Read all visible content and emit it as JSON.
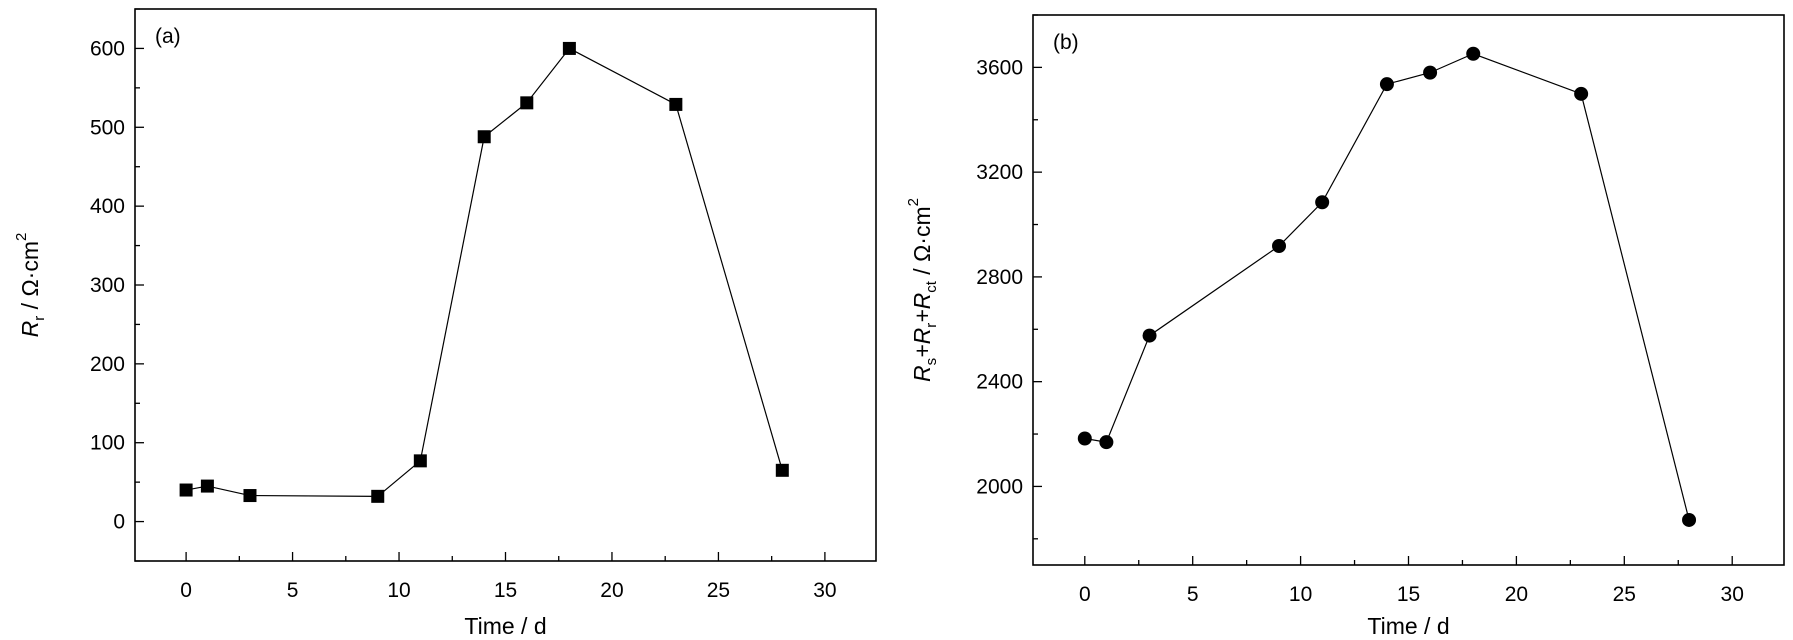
{
  "chart_data": [
    {
      "type": "line",
      "panel_label": "(a)",
      "xlabel": "Time / d",
      "ylabel": {
        "main": "R",
        "sub": "r",
        "unit": " / Ω·cm",
        "sup": "2"
      },
      "xlim": [
        -2.4,
        32.4
      ],
      "ylim": [
        -50,
        650
      ],
      "xticks": [
        0,
        5,
        10,
        15,
        20,
        25,
        30
      ],
      "yticks": [
        0,
        100,
        200,
        300,
        400,
        500,
        600
      ],
      "xminor": 2.5,
      "yminor": 50,
      "marker": "square",
      "grid": false,
      "series": [
        {
          "name": "Rr",
          "x": [
            0,
            1,
            3,
            9,
            11,
            14,
            16,
            18,
            23,
            28
          ],
          "y": [
            40,
            45,
            33,
            32,
            77,
            488,
            531,
            600,
            529,
            65
          ]
        }
      ]
    },
    {
      "type": "line",
      "panel_label": "(b)",
      "xlabel": "Time / d",
      "ylabel": {
        "main": "R",
        "sub": "s",
        "plus1": "+R",
        "sub2": "r",
        "plus2": "+R",
        "sub3": "ct",
        "unit": " / Ω·cm",
        "sup": "2"
      },
      "xlim": [
        -2.4,
        32.4
      ],
      "ylim": [
        1700,
        3800
      ],
      "xticks": [
        0,
        5,
        10,
        15,
        20,
        25,
        30
      ],
      "yticks": [
        2000,
        2400,
        2800,
        3200,
        3600
      ],
      "xminor": 2.5,
      "yminor": 200,
      "marker": "circle",
      "grid": false,
      "series": [
        {
          "name": "Rs+Rr+Rct",
          "x": [
            0,
            1,
            3,
            9,
            11,
            14,
            16,
            18,
            23,
            28
          ],
          "y": [
            2183,
            2169,
            2576,
            2918,
            3085,
            3536,
            3580,
            3652,
            3499,
            1872
          ]
        }
      ]
    }
  ]
}
